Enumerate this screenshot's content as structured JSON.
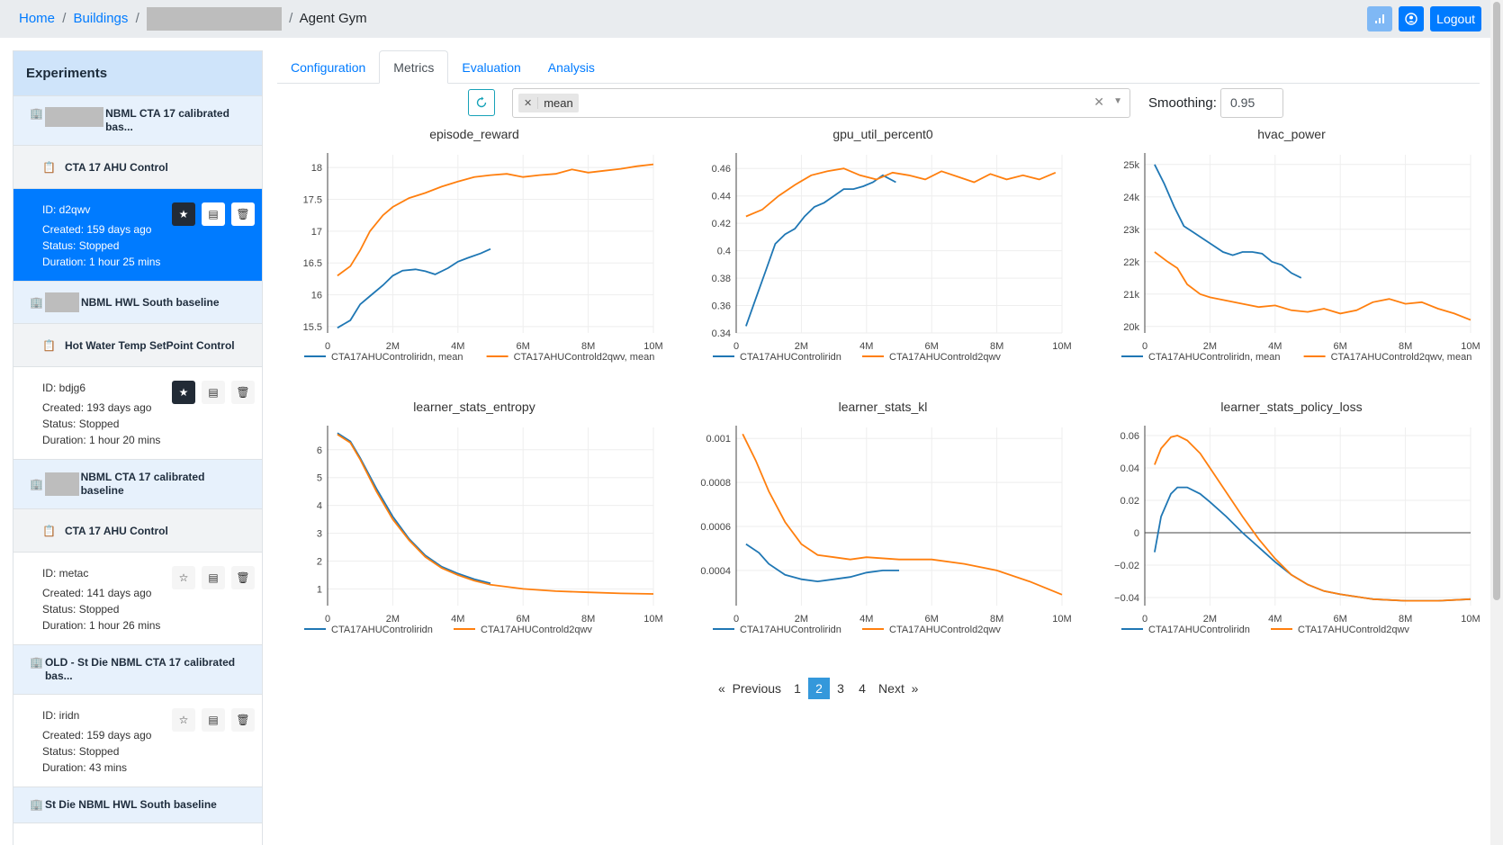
{
  "breadcrumb": {
    "home": "Home",
    "buildings": "Buildings",
    "current": "Agent Gym"
  },
  "top_actions": {
    "logout": "Logout"
  },
  "tabs": [
    "Configuration",
    "Metrics",
    "Evaluation",
    "Analysis"
  ],
  "filter": {
    "selected": "mean",
    "smoothing_label": "Smoothing:",
    "smoothing_value": "0.95"
  },
  "sidebar": {
    "title": "Experiments",
    "b1": {
      "name": "NBML CTA 17 calibrated bas..."
    },
    "e1": {
      "name": "CTA 17 AHU Control"
    },
    "r1": {
      "id": "ID: d2qwv",
      "created": "Created: 159 days ago",
      "status": "Status: Stopped",
      "duration": "Duration: 1 hour 25 mins"
    },
    "b2": {
      "name": "NBML HWL South baseline"
    },
    "e2": {
      "name": "Hot Water Temp SetPoint Control"
    },
    "r2": {
      "id": "ID: bdjg6",
      "created": "Created: 193 days ago",
      "status": "Status: Stopped",
      "duration": "Duration: 1 hour 20 mins"
    },
    "b3": {
      "name": "NBML CTA 17 calibrated baseline"
    },
    "e3": {
      "name": "CTA 17 AHU Control"
    },
    "r3": {
      "id": "ID: metac",
      "created": "Created: 141 days ago",
      "status": "Status: Stopped",
      "duration": "Duration: 1 hour 26 mins"
    },
    "b4": {
      "name": "OLD - St Die NBML CTA 17 calibrated bas..."
    },
    "r4": {
      "id": "ID: iridn",
      "created": "Created: 159 days ago",
      "status": "Status: Stopped",
      "duration": "Duration: 43 mins"
    },
    "b5": {
      "name": "St Die NBML HWL South baseline"
    }
  },
  "colors": {
    "blue": "#1f77b4",
    "orange": "#ff7f0e"
  },
  "pager": {
    "prev": "Previous",
    "next": "Next",
    "pages": [
      "1",
      "2",
      "3",
      "4"
    ],
    "active": "2"
  },
  "chart_data": [
    {
      "type": "line",
      "title": "episode_reward",
      "xlim": [
        0,
        10000000
      ],
      "ylim": [
        15.4,
        18.2
      ],
      "xticks": [
        "0",
        "2M",
        "4M",
        "6M",
        "8M",
        "10M"
      ],
      "yticks": [
        15.5,
        16,
        16.5,
        17,
        17.5,
        18
      ],
      "ytick_labels": [
        "15.5",
        "16",
        "16.5",
        "17",
        "17.5",
        "18"
      ],
      "series": [
        {
          "name": "CTA17AHUControliridn, mean",
          "color": "#1f77b4",
          "x": [
            300000,
            700000,
            1000000,
            1300000,
            1700000,
            2000000,
            2300000,
            2700000,
            3000000,
            3300000,
            3700000,
            4000000,
            4300000,
            4700000,
            5000000
          ],
          "y": [
            15.48,
            15.6,
            15.85,
            15.98,
            16.15,
            16.3,
            16.38,
            16.4,
            16.37,
            16.32,
            16.42,
            16.52,
            16.58,
            16.65,
            16.72
          ]
        },
        {
          "name": "CTA17AHUControld2qwv, mean",
          "color": "#ff7f0e",
          "x": [
            300000,
            700000,
            1000000,
            1300000,
            1700000,
            2000000,
            2500000,
            3000000,
            3500000,
            4000000,
            4500000,
            5000000,
            5500000,
            6000000,
            6500000,
            7000000,
            7500000,
            8000000,
            8500000,
            9000000,
            9500000,
            10000000
          ],
          "y": [
            16.3,
            16.45,
            16.7,
            17.0,
            17.25,
            17.38,
            17.52,
            17.6,
            17.7,
            17.78,
            17.85,
            17.88,
            17.9,
            17.85,
            17.88,
            17.9,
            17.97,
            17.92,
            17.95,
            17.98,
            18.02,
            18.05
          ]
        }
      ]
    },
    {
      "type": "line",
      "title": "gpu_util_percent0",
      "xlim": [
        0,
        10000000
      ],
      "ylim": [
        0.34,
        0.47
      ],
      "xticks": [
        "0",
        "2M",
        "4M",
        "6M",
        "8M",
        "10M"
      ],
      "yticks": [
        0.34,
        0.36,
        0.38,
        0.4,
        0.42,
        0.44,
        0.46
      ],
      "ytick_labels": [
        "0.34",
        "0.36",
        "0.38",
        "0.4",
        "0.42",
        "0.44",
        "0.46"
      ],
      "series": [
        {
          "name": "CTA17AHUControliridn",
          "color": "#1f77b4",
          "x": [
            300000,
            600000,
            900000,
            1200000,
            1500000,
            1800000,
            2100000,
            2400000,
            2700000,
            3000000,
            3300000,
            3600000,
            3900000,
            4200000,
            4500000,
            4900000
          ],
          "y": [
            0.345,
            0.365,
            0.385,
            0.405,
            0.412,
            0.416,
            0.425,
            0.432,
            0.435,
            0.44,
            0.445,
            0.445,
            0.447,
            0.45,
            0.455,
            0.45
          ]
        },
        {
          "name": "CTA17AHUControld2qwv",
          "color": "#ff7f0e",
          "x": [
            300000,
            800000,
            1300000,
            1800000,
            2300000,
            2800000,
            3300000,
            3800000,
            4300000,
            4800000,
            5300000,
            5800000,
            6300000,
            6800000,
            7300000,
            7800000,
            8300000,
            8800000,
            9300000,
            9800000
          ],
          "y": [
            0.425,
            0.43,
            0.44,
            0.448,
            0.455,
            0.458,
            0.46,
            0.455,
            0.452,
            0.457,
            0.455,
            0.452,
            0.458,
            0.454,
            0.45,
            0.456,
            0.452,
            0.455,
            0.452,
            0.457
          ]
        }
      ]
    },
    {
      "type": "line",
      "title": "hvac_power",
      "xlim": [
        0,
        10000000
      ],
      "ylim": [
        19800,
        25300
      ],
      "xticks": [
        "0",
        "2M",
        "4M",
        "6M",
        "8M",
        "10M"
      ],
      "yticks": [
        20000,
        21000,
        22000,
        23000,
        24000,
        25000
      ],
      "ytick_labels": [
        "20k",
        "21k",
        "22k",
        "23k",
        "24k",
        "25k"
      ],
      "series": [
        {
          "name": "CTA17AHUControliridn, mean",
          "color": "#1f77b4",
          "x": [
            300000,
            600000,
            900000,
            1200000,
            1500000,
            1800000,
            2100000,
            2400000,
            2700000,
            3000000,
            3300000,
            3600000,
            3900000,
            4200000,
            4500000,
            4800000
          ],
          "y": [
            25000,
            24400,
            23700,
            23100,
            22900,
            22700,
            22500,
            22300,
            22200,
            22300,
            22300,
            22250,
            22000,
            21900,
            21650,
            21500
          ]
        },
        {
          "name": "CTA17AHUControld2qwv, mean",
          "color": "#ff7f0e",
          "x": [
            300000,
            700000,
            1000000,
            1300000,
            1700000,
            2000000,
            2500000,
            3000000,
            3500000,
            4000000,
            4500000,
            5000000,
            5500000,
            6000000,
            6500000,
            7000000,
            7500000,
            8000000,
            8500000,
            9000000,
            9500000,
            10000000
          ],
          "y": [
            22300,
            22000,
            21800,
            21300,
            21000,
            20900,
            20800,
            20700,
            20600,
            20650,
            20500,
            20450,
            20550,
            20400,
            20500,
            20750,
            20850,
            20700,
            20750,
            20550,
            20400,
            20200
          ]
        }
      ]
    },
    {
      "type": "line",
      "title": "learner_stats_entropy",
      "xlim": [
        0,
        10000000
      ],
      "ylim": [
        0.4,
        6.8
      ],
      "xticks": [
        "0",
        "2M",
        "4M",
        "6M",
        "8M",
        "10M"
      ],
      "yticks": [
        1,
        2,
        3,
        4,
        5,
        6
      ],
      "ytick_labels": [
        "1",
        "2",
        "3",
        "4",
        "5",
        "6"
      ],
      "series": [
        {
          "name": "CTA17AHUControliridn",
          "color": "#1f77b4",
          "x": [
            300000,
            700000,
            1000000,
            1500000,
            2000000,
            2500000,
            3000000,
            3500000,
            4000000,
            4500000,
            5000000
          ],
          "y": [
            6.6,
            6.3,
            5.7,
            4.6,
            3.6,
            2.8,
            2.2,
            1.8,
            1.55,
            1.35,
            1.2
          ]
        },
        {
          "name": "CTA17AHUControld2qwv",
          "color": "#ff7f0e",
          "x": [
            300000,
            700000,
            1000000,
            1500000,
            2000000,
            2500000,
            3000000,
            3500000,
            4000000,
            4500000,
            5000000,
            6000000,
            7000000,
            8000000,
            9000000,
            10000000
          ],
          "y": [
            6.55,
            6.25,
            5.65,
            4.5,
            3.5,
            2.75,
            2.15,
            1.75,
            1.5,
            1.3,
            1.15,
            1.0,
            0.92,
            0.88,
            0.84,
            0.82
          ]
        }
      ]
    },
    {
      "type": "line",
      "title": "learner_stats_kl",
      "xlim": [
        0,
        10000000
      ],
      "ylim": [
        0.00024,
        0.00105
      ],
      "xticks": [
        "0",
        "2M",
        "4M",
        "6M",
        "8M",
        "10M"
      ],
      "yticks": [
        0.0004,
        0.0006,
        0.0008,
        0.001
      ],
      "ytick_labels": [
        "0.0004",
        "0.0006",
        "0.0008",
        "0.001"
      ],
      "series": [
        {
          "name": "CTA17AHUControliridn",
          "color": "#1f77b4",
          "x": [
            300000,
            700000,
            1000000,
            1500000,
            2000000,
            2500000,
            3000000,
            3500000,
            4000000,
            4500000,
            5000000
          ],
          "y": [
            0.00052,
            0.00048,
            0.00043,
            0.00038,
            0.00036,
            0.00035,
            0.00036,
            0.00037,
            0.00039,
            0.0004,
            0.0004
          ]
        },
        {
          "name": "CTA17AHUControld2qwv",
          "color": "#ff7f0e",
          "x": [
            200000,
            600000,
            1000000,
            1500000,
            2000000,
            2500000,
            3000000,
            3500000,
            4000000,
            5000000,
            6000000,
            7000000,
            8000000,
            9000000,
            10000000
          ],
          "y": [
            0.00102,
            0.0009,
            0.00076,
            0.00062,
            0.00052,
            0.00047,
            0.00046,
            0.00045,
            0.00046,
            0.00045,
            0.00045,
            0.00043,
            0.0004,
            0.00035,
            0.00029
          ]
        }
      ]
    },
    {
      "type": "line",
      "title": "learner_stats_policy_loss",
      "xlim": [
        0,
        10000000
      ],
      "ylim": [
        -0.045,
        0.065
      ],
      "xticks": [
        "0",
        "2M",
        "4M",
        "6M",
        "8M",
        "10M"
      ],
      "yticks": [
        -0.04,
        -0.02,
        0,
        0.02,
        0.04,
        0.06
      ],
      "ytick_labels": [
        "−0.04",
        "−0.02",
        "0",
        "0.02",
        "0.04",
        "0.06"
      ],
      "series": [
        {
          "name": "CTA17AHUControliridn",
          "color": "#1f77b4",
          "x": [
            300000,
            500000,
            800000,
            1000000,
            1300000,
            1700000,
            2000000,
            2500000,
            3000000,
            3500000,
            4000000,
            4500000,
            5000000,
            5500000,
            6000000,
            7000000,
            8000000,
            9000000,
            10000000
          ],
          "y": [
            -0.012,
            0.01,
            0.024,
            0.028,
            0.028,
            0.024,
            0.019,
            0.01,
            0.0,
            -0.009,
            -0.018,
            -0.026,
            -0.032,
            -0.036,
            -0.038,
            -0.041,
            -0.042,
            -0.042,
            -0.041
          ]
        },
        {
          "name": "CTA17AHUControld2qwv",
          "color": "#ff7f0e",
          "x": [
            300000,
            500000,
            800000,
            1000000,
            1300000,
            1700000,
            2000000,
            2500000,
            3000000,
            3500000,
            4000000,
            4500000,
            5000000,
            5500000,
            6000000,
            7000000,
            8000000,
            9000000,
            10000000
          ],
          "y": [
            0.042,
            0.052,
            0.059,
            0.06,
            0.057,
            0.049,
            0.04,
            0.025,
            0.01,
            -0.004,
            -0.016,
            -0.026,
            -0.032,
            -0.036,
            -0.038,
            -0.041,
            -0.042,
            -0.042,
            -0.041
          ]
        }
      ]
    }
  ]
}
